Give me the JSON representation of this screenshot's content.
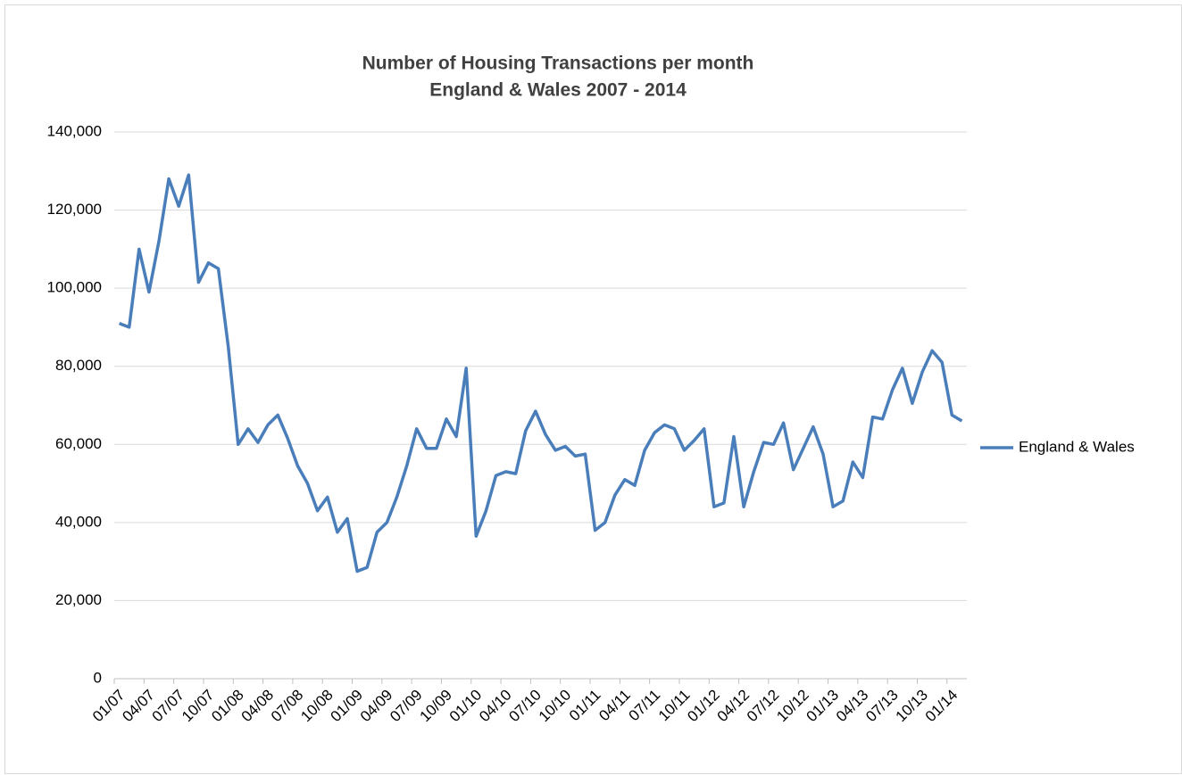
{
  "chart_data": {
    "type": "line",
    "title": "Number of Housing Transactions per month",
    "subtitle": "England & Wales 2007 - 2014",
    "categories": [
      "01/07",
      null,
      null,
      "04/07",
      null,
      null,
      "07/07",
      null,
      null,
      "10/07",
      null,
      null,
      "01/08",
      null,
      null,
      "04/08",
      null,
      null,
      "07/08",
      null,
      null,
      "10/08",
      null,
      null,
      "01/09",
      null,
      null,
      "04/09",
      null,
      null,
      "07/09",
      null,
      null,
      "10/09",
      null,
      null,
      "01/10",
      null,
      null,
      "04/10",
      null,
      null,
      "07/10",
      null,
      null,
      "10/10",
      null,
      null,
      "01/11",
      null,
      null,
      "04/11",
      null,
      null,
      "07/11",
      null,
      null,
      "10/11",
      null,
      null,
      "01/12",
      null,
      null,
      "04/12",
      null,
      null,
      "07/12",
      null,
      null,
      "10/12",
      null,
      null,
      "01/13",
      null,
      null,
      "04/13",
      null,
      null,
      "07/13",
      null,
      null,
      "10/13",
      null,
      null,
      "01/14",
      null
    ],
    "series": [
      {
        "name": "England & Wales",
        "color": "#4a7ebb",
        "values": [
          91000,
          90000,
          110000,
          99000,
          112000,
          128000,
          121000,
          129000,
          101500,
          106500,
          105000,
          85000,
          60000,
          64000,
          60500,
          65000,
          67500,
          61500,
          54500,
          50000,
          43000,
          46500,
          37500,
          41000,
          27500,
          28500,
          37500,
          40000,
          46500,
          54500,
          64000,
          59000,
          59000,
          66500,
          62000,
          79500,
          36500,
          43000,
          52000,
          53000,
          52500,
          63500,
          68500,
          62500,
          58500,
          59500,
          57000,
          57500,
          38000,
          40000,
          47000,
          51000,
          49500,
          58500,
          63000,
          65000,
          64000,
          58500,
          61000,
          64000,
          44000,
          45000,
          62000,
          44000,
          53000,
          60500,
          60000,
          65500,
          53500,
          59000,
          64500,
          57500,
          44000,
          45500,
          55500,
          51500,
          67000,
          66500,
          74000,
          79500,
          70500,
          78500,
          84000,
          81000,
          67500,
          66000
        ]
      }
    ],
    "ylim": [
      0,
      140000
    ],
    "yticks": [
      0,
      {
        "value": 20000,
        "label": "20,000"
      },
      {
        "value": 40000,
        "label": "40,000"
      },
      {
        "value": 60000,
        "label": "60,000"
      },
      {
        "value": 80000,
        "label": "80,000"
      },
      {
        "value": 100000,
        "label": "100,000"
      },
      {
        "value": 120000,
        "label": "120,000"
      },
      {
        "value": 140000,
        "label": "140,000"
      }
    ],
    "grid": true,
    "legend": "right"
  }
}
